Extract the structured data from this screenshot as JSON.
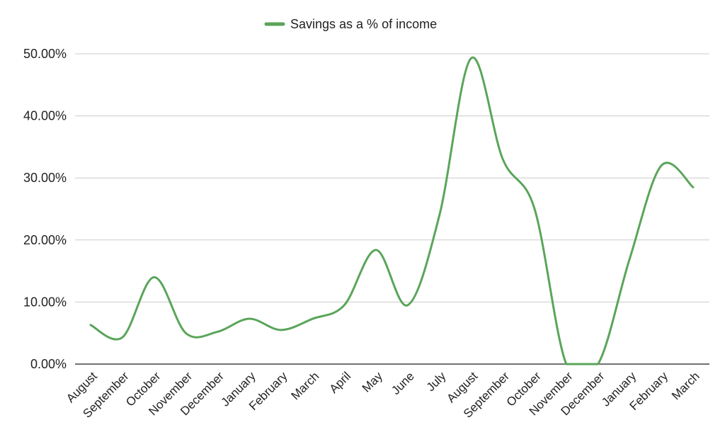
{
  "chart_data": {
    "type": "line",
    "legend": {
      "position": "top",
      "label": "Savings as a % of income"
    },
    "grid": true,
    "categories": [
      "August",
      "September",
      "October",
      "November",
      "December",
      "January",
      "February",
      "March",
      "April",
      "May",
      "June",
      "July",
      "August",
      "September",
      "October",
      "November",
      "December",
      "January",
      "February",
      "March"
    ],
    "series": [
      {
        "name": "Savings as a % of income",
        "color": "#5aa55a",
        "values": [
          6.3,
          4.3,
          14.0,
          5.0,
          5.2,
          7.3,
          5.5,
          7.3,
          9.5,
          18.4,
          9.5,
          24.0,
          49.3,
          33.0,
          25.0,
          0.0,
          0.0,
          17.0,
          32.0,
          28.5
        ]
      }
    ],
    "ylim": [
      0,
      50
    ],
    "yticks": [
      0,
      10,
      20,
      30,
      40,
      50
    ],
    "ytick_labels": [
      "0.00%",
      "10.00%",
      "20.00%",
      "30.00%",
      "40.00%",
      "50.00%"
    ],
    "xlabel": "",
    "ylabel": ""
  }
}
